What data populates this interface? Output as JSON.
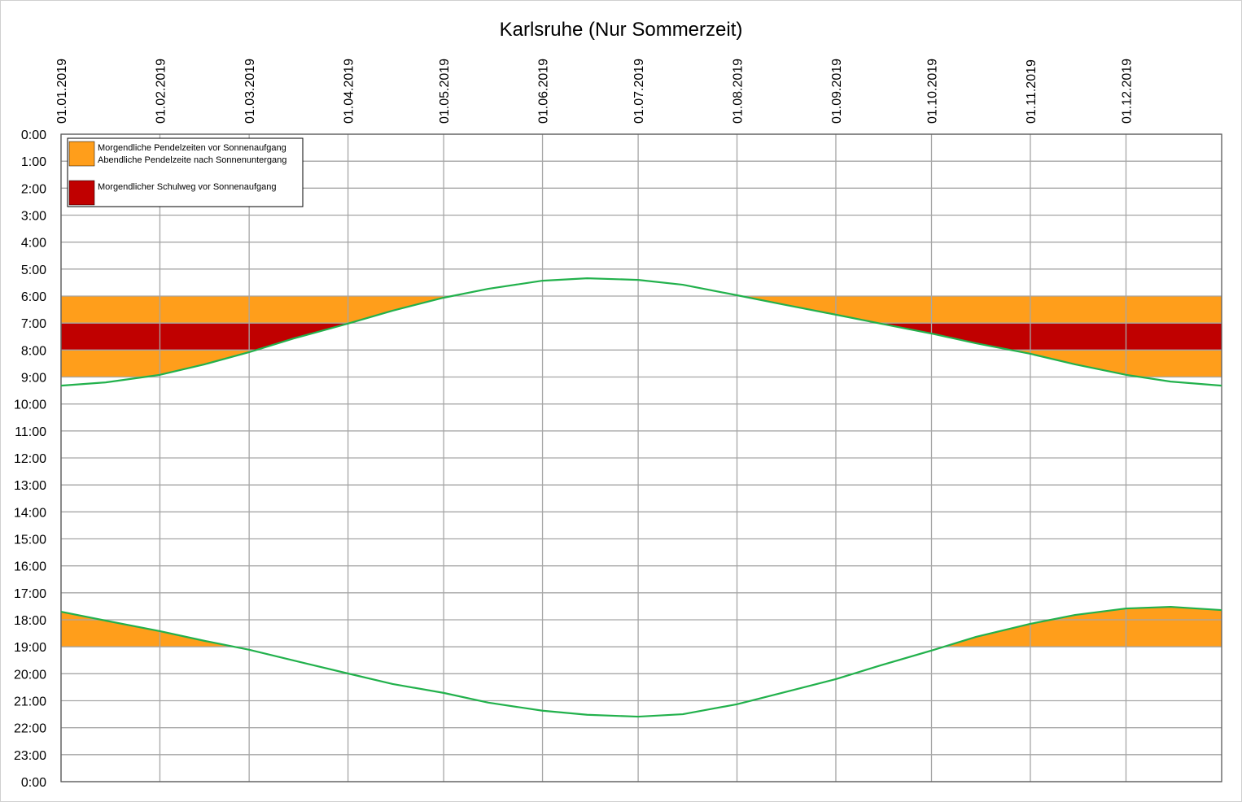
{
  "chart_data": {
    "type": "line",
    "title": "Karlsruhe (Nur Sommerzeit)",
    "x": [
      "01.01.2019",
      "15.01.2019",
      "01.02.2019",
      "15.02.2019",
      "01.03.2019",
      "15.03.2019",
      "01.04.2019",
      "15.04.2019",
      "01.05.2019",
      "15.05.2019",
      "01.06.2019",
      "15.06.2019",
      "01.07.2019",
      "15.07.2019",
      "01.08.2019",
      "15.08.2019",
      "01.09.2019",
      "15.09.2019",
      "01.10.2019",
      "15.10.2019",
      "01.11.2019",
      "15.11.2019",
      "01.12.2019",
      "15.12.2019",
      "31.12.2019"
    ],
    "series": [
      {
        "color": "#22b14c",
        "values": [
          9.32,
          9.2,
          8.92,
          8.53,
          8.08,
          7.57,
          7.02,
          6.54,
          6.06,
          5.73,
          5.43,
          5.34,
          5.4,
          5.58,
          5.97,
          6.3,
          6.69,
          7.02,
          7.39,
          7.75,
          8.14,
          8.53,
          8.92,
          9.17,
          9.32
        ]
      },
      {
        "color": "#22b14c",
        "values": [
          17.7,
          18.03,
          18.42,
          18.78,
          19.11,
          19.51,
          19.99,
          20.38,
          20.71,
          21.07,
          21.37,
          21.52,
          21.59,
          21.5,
          21.13,
          20.71,
          20.2,
          19.69,
          19.14,
          18.63,
          18.15,
          17.82,
          17.58,
          17.52,
          17.64
        ]
      }
    ],
    "areas": [
      {
        "name": "Morgendliche Pendelzeiten vor Sonnenaufgang",
        "color": "#ff9e1b",
        "from": 6,
        "to": 9,
        "before": 0
      },
      {
        "name": "Abendliche Pendelzeite nach Sonnenuntergang",
        "color": "#ff9e1b",
        "from": 17,
        "to": 19,
        "after": 1
      },
      {
        "name": "Morgendlicher Schulweg vor Sonnenaufgang",
        "color": "#c00000",
        "from": 7,
        "to": 8,
        "before": 0
      }
    ],
    "xlim": [
      "01.01.2019",
      "31.12.2019"
    ],
    "xticks": [
      "01.01.2019",
      "01.02.2019",
      "01.03.2019",
      "01.04.2019",
      "01.05.2019",
      "01.06.2019",
      "01.07.2019",
      "01.08.2019",
      "01.09.2019",
      "01.10.2019",
      "01.11.2019",
      "01.12.2019"
    ],
    "ylim": [
      0,
      24
    ],
    "y_inverted": true,
    "yticks": [
      {
        "value": 0,
        "label": "0:00"
      },
      {
        "value": 1,
        "label": "1:00"
      },
      {
        "value": 2,
        "label": "2:00"
      },
      {
        "value": 3,
        "label": "3:00"
      },
      {
        "value": 4,
        "label": "4:00"
      },
      {
        "value": 5,
        "label": "5:00"
      },
      {
        "value": 6,
        "label": "6:00"
      },
      {
        "value": 7,
        "label": "7:00"
      },
      {
        "value": 8,
        "label": "8:00"
      },
      {
        "value": 9,
        "label": "9:00"
      },
      {
        "value": 10,
        "label": "10:00"
      },
      {
        "value": 11,
        "label": "11:00"
      },
      {
        "value": 12,
        "label": "12:00"
      },
      {
        "value": 13,
        "label": "13:00"
      },
      {
        "value": 14,
        "label": "14:00"
      },
      {
        "value": 15,
        "label": "15:00"
      },
      {
        "value": 16,
        "label": "16:00"
      },
      {
        "value": 17,
        "label": "17:00"
      },
      {
        "value": 18,
        "label": "18:00"
      },
      {
        "value": 19,
        "label": "19:00"
      },
      {
        "value": 20,
        "label": "20:00"
      },
      {
        "value": 21,
        "label": "21:00"
      },
      {
        "value": 22,
        "label": "22:00"
      },
      {
        "value": 23,
        "label": "23:00"
      },
      {
        "value": 24,
        "label": "0:00"
      }
    ],
    "grid": true,
    "legend": "upper left"
  }
}
